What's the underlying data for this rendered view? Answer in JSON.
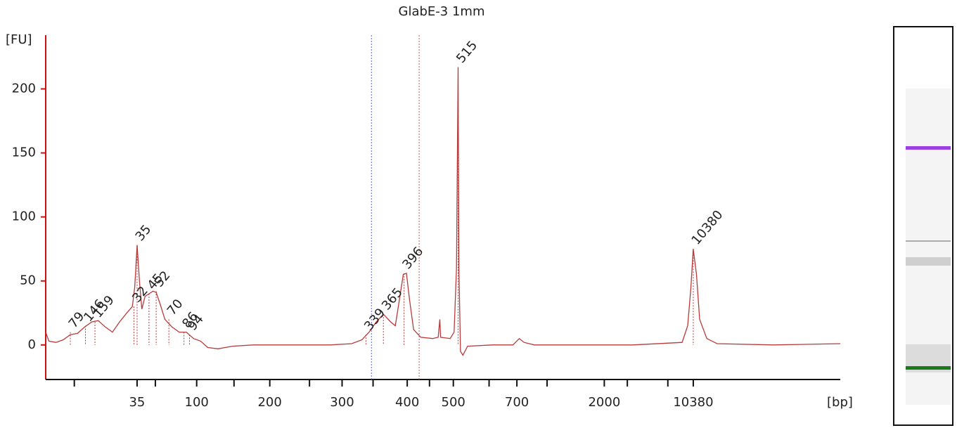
{
  "chart_data": {
    "type": "line",
    "title": "GlabE-3 1mm",
    "ylabel": "[FU]",
    "xlabel": "[bp]",
    "color": "#b83a3a",
    "axis_color": "#cc1111",
    "xlim": [
      0,
      100
    ],
    "ylim": [
      -27,
      242
    ],
    "yticks": [
      0,
      50,
      100,
      150,
      200
    ],
    "xticks": [
      {
        "value": 11.5,
        "label": "35"
      },
      {
        "value": 19.0,
        "label": "100"
      },
      {
        "value": 28.2,
        "label": "200"
      },
      {
        "value": 37.3,
        "label": "300"
      },
      {
        "value": 45.5,
        "label": "400"
      },
      {
        "value": 51.3,
        "label": "500"
      },
      {
        "value": 59.3,
        "label": "700"
      },
      {
        "value": 70.3,
        "label": "2000"
      },
      {
        "value": 81.5,
        "label": "10380"
      }
    ],
    "xminor_ticks": [
      3.6,
      13.8,
      23.7,
      33.2,
      41.2,
      48.3,
      55.8,
      63.1,
      73.2,
      78.3
    ],
    "x": [
      0,
      0.4,
      1.3,
      2.2,
      3.1,
      4.0,
      4.9,
      5.8,
      6.6,
      7.5,
      8.4,
      9.3,
      10.2,
      10.9,
      11.2,
      11.5,
      11.8,
      12.1,
      12.5,
      13.0,
      13.5,
      13.9,
      14.4,
      15.0,
      15.9,
      16.8,
      17.7,
      18.6,
      19.5,
      20.4,
      21.7,
      23.5,
      26.1,
      31.4,
      35.8,
      38.5,
      39.8,
      40.7,
      41.6,
      42.5,
      43.4,
      44.0,
      44.5,
      45.0,
      45.4,
      45.8,
      46.3,
      47.2,
      48.7,
      49.4,
      49.6,
      49.7,
      50.9,
      51.4,
      51.7,
      51.9,
      52.0,
      52.2,
      52.5,
      53.1,
      56.2,
      58.8,
      59.6,
      60.2,
      61.5,
      73.9,
      80.1,
      80.8,
      81.2,
      81.5,
      81.9,
      82.3,
      83.2,
      84.5,
      91.6,
      100
    ],
    "values": [
      10,
      3,
      2,
      4,
      8,
      9,
      14,
      18,
      19,
      14,
      10,
      18,
      25,
      30,
      45,
      78,
      50,
      28,
      38,
      40,
      42,
      41,
      32,
      20,
      14,
      10,
      10,
      5,
      3,
      -2,
      -3,
      -1,
      0,
      0,
      0,
      1,
      4,
      10,
      18,
      24,
      18,
      15,
      35,
      55,
      56,
      35,
      12,
      6,
      5,
      6,
      20,
      6,
      5,
      10,
      60,
      217,
      60,
      -5,
      -8,
      -1,
      0,
      0,
      5,
      2,
      0,
      0,
      2,
      15,
      45,
      75,
      55,
      20,
      5,
      1,
      0,
      1
    ],
    "peaks": [
      {
        "size": 79,
        "x": 3.1,
        "y": 10,
        "color": "#222222"
      },
      {
        "size": 146,
        "x": 5.0,
        "y": 15,
        "color": "#222222"
      },
      {
        "size": 159,
        "x": 6.2,
        "y": 18,
        "color": "#222222"
      },
      {
        "size": 32,
        "x": 11.1,
        "y": 30,
        "color": "#222222"
      },
      {
        "size": 35,
        "x": 11.5,
        "y": 78,
        "color": "#1a8a1a"
      },
      {
        "size": 45,
        "x": 13.0,
        "y": 40,
        "color": "#222222"
      },
      {
        "size": 52,
        "x": 13.9,
        "y": 42,
        "color": "#222222"
      },
      {
        "size": 70,
        "x": 15.5,
        "y": 20,
        "color": "#222222"
      },
      {
        "size": 86,
        "x": 17.4,
        "y": 10,
        "color": "#222222"
      },
      {
        "size": 94,
        "x": 18.1,
        "y": 8,
        "color": "#222222"
      },
      {
        "size": 339,
        "x": 40.3,
        "y": 8,
        "color": "#222222"
      },
      {
        "size": 365,
        "x": 42.5,
        "y": 24,
        "color": "#222222"
      },
      {
        "size": 396,
        "x": 45.1,
        "y": 56,
        "color": "#222222"
      },
      {
        "size": 515,
        "x": 51.9,
        "y": 217,
        "color": "#222222"
      },
      {
        "size": 10380,
        "x": 81.5,
        "y": 75,
        "color": "#9b3fe0"
      }
    ],
    "region_lines": [
      {
        "x": 41.0,
        "color": "#6a6ad0"
      },
      {
        "x": 47.0,
        "color": "#b06060"
      }
    ]
  }
}
